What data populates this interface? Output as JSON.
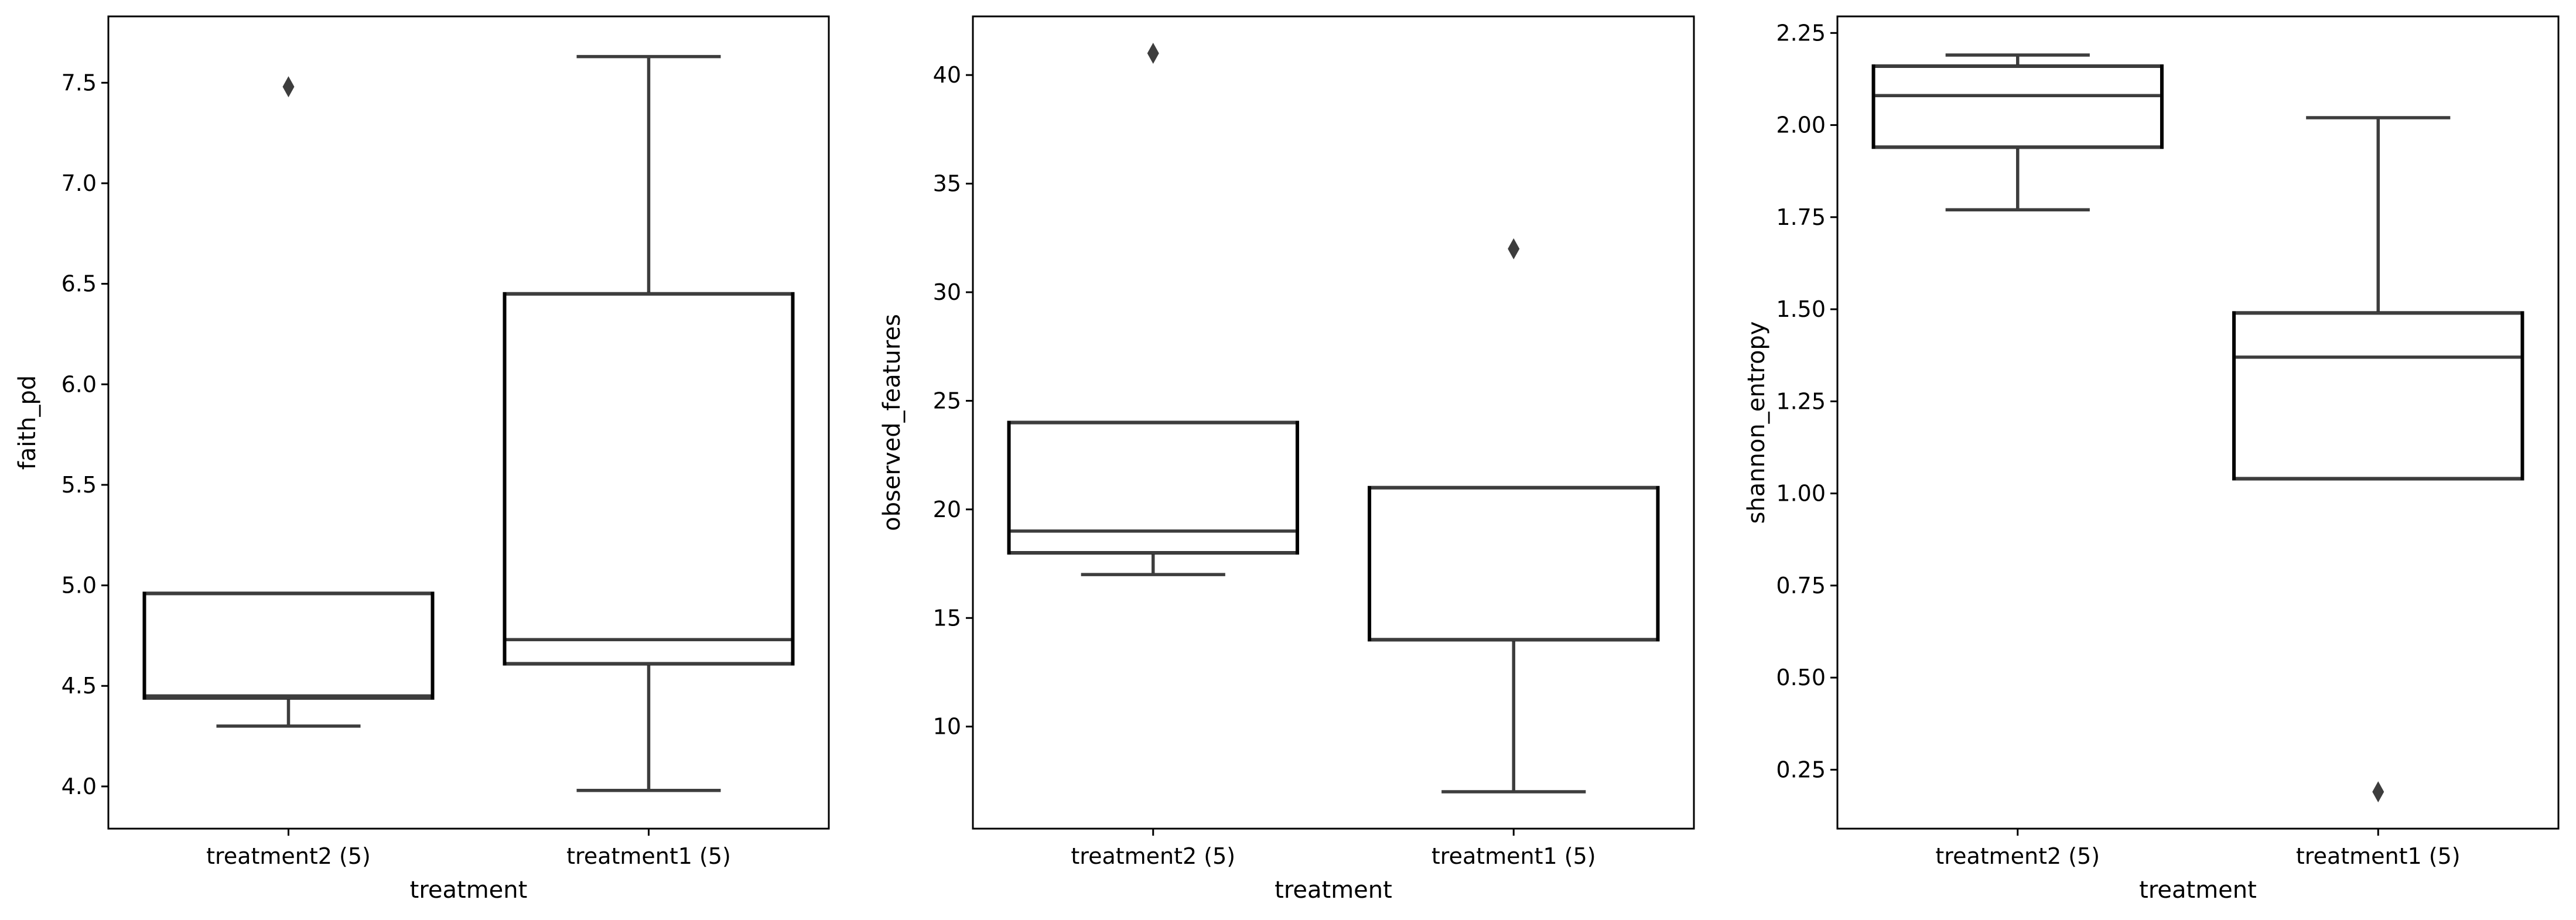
{
  "chart_data": [
    {
      "type": "box",
      "xlabel": "treatment",
      "ylabel": "faith_pd",
      "categories": [
        "treatment2 (5)",
        "treatment1 (5)"
      ],
      "ylim": [
        3.79,
        7.83
      ],
      "yticks": [
        4.0,
        4.5,
        5.0,
        5.5,
        6.0,
        6.5,
        7.0,
        7.5
      ],
      "ytick_labels": [
        "4.0",
        "4.5",
        "5.0",
        "5.5",
        "6.0",
        "6.5",
        "7.0",
        "7.5"
      ],
      "boxes": [
        {
          "whislo": 4.3,
          "q1": 4.44,
          "med": 4.45,
          "q3": 4.96,
          "whishi": 4.96,
          "fliers": [
            7.48
          ]
        },
        {
          "whislo": 3.98,
          "q1": 4.61,
          "med": 4.73,
          "q3": 6.45,
          "whishi": 7.63,
          "fliers": []
        }
      ]
    },
    {
      "type": "box",
      "xlabel": "treatment",
      "ylabel": "observed_features",
      "categories": [
        "treatment2 (5)",
        "treatment1 (5)"
      ],
      "ylim": [
        5.3,
        42.7
      ],
      "yticks": [
        10,
        15,
        20,
        25,
        30,
        35,
        40
      ],
      "ytick_labels": [
        "10",
        "15",
        "20",
        "25",
        "30",
        "35",
        "40"
      ],
      "boxes": [
        {
          "whislo": 17,
          "q1": 18,
          "med": 19,
          "q3": 24,
          "whishi": 24,
          "fliers": [
            41
          ]
        },
        {
          "whislo": 7,
          "q1": 14,
          "med": 21,
          "q3": 21,
          "whishi": 21,
          "fliers": [
            32
          ]
        }
      ]
    },
    {
      "type": "box",
      "xlabel": "treatment",
      "ylabel": "shannon_entropy",
      "categories": [
        "treatment2 (5)",
        "treatment1 (5)"
      ],
      "ylim": [
        0.09,
        2.295
      ],
      "yticks": [
        0.25,
        0.5,
        0.75,
        1.0,
        1.25,
        1.5,
        1.75,
        2.0,
        2.25
      ],
      "ytick_labels": [
        "0.25",
        "0.50",
        "0.75",
        "1.00",
        "1.25",
        "1.50",
        "1.75",
        "2.00",
        "2.25"
      ],
      "boxes": [
        {
          "whislo": 1.77,
          "q1": 1.94,
          "med": 2.08,
          "q3": 2.16,
          "whishi": 2.19,
          "fliers": []
        },
        {
          "whislo": 1.04,
          "q1": 1.04,
          "med": 1.37,
          "q3": 1.49,
          "whishi": 2.02,
          "fliers": [
            0.19
          ]
        }
      ]
    }
  ]
}
